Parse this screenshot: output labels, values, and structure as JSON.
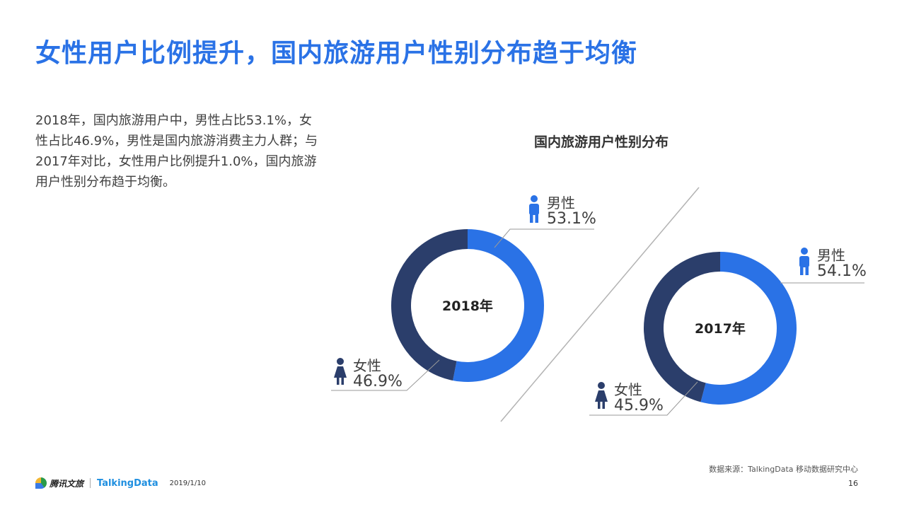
{
  "page": {
    "title": "女性用户比例提升，国内旅游用户性别分布趋于均衡",
    "description": "2018年，国内旅游用户中，男性占比53.1%，女性占比46.9%，男性是国内旅游消费主力人群；与2017年对比，女性用户比例提升1.0%，国内旅游用户性别分布趋于均衡。",
    "source": "数据来源：TalkingData 移动数据研究中心",
    "footer": {
      "logo_text": "腾讯文旅",
      "brand": "TalkingData",
      "date": "2019/1/10",
      "page_number": "16"
    }
  },
  "colors": {
    "male": "#2a72e6",
    "female": "#2b3e6b",
    "title": "#2a72e6"
  },
  "chart_data": [
    {
      "type": "pie",
      "title": "国内旅游用户性别分布",
      "center_label": "2018年",
      "series": [
        {
          "name": "男性",
          "value": 53.1,
          "label": "53.1%"
        },
        {
          "name": "女性",
          "value": 46.9,
          "label": "46.9%"
        }
      ]
    },
    {
      "type": "pie",
      "center_label": "2017年",
      "series": [
        {
          "name": "男性",
          "value": 54.1,
          "label": "54.1%"
        },
        {
          "name": "女性",
          "value": 45.9,
          "label": "45.9%"
        }
      ]
    }
  ]
}
